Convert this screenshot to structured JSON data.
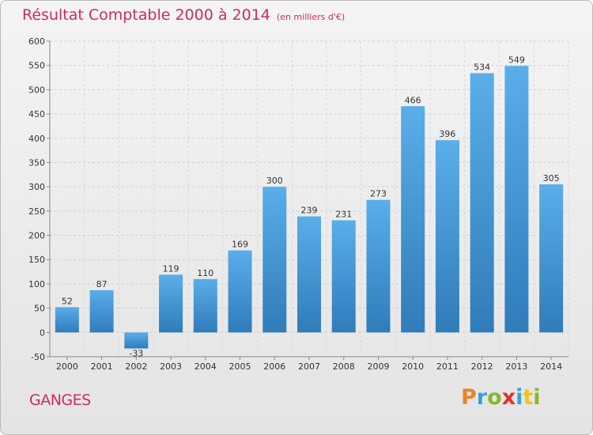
{
  "chart_data": {
    "type": "bar",
    "title": "Résultat Comptable 2000 à 2014",
    "subtitle": "(en milliers d'€)",
    "categories": [
      "2000",
      "2001",
      "2002",
      "2003",
      "2004",
      "2005",
      "2006",
      "2007",
      "2008",
      "2009",
      "2010",
      "2011",
      "2012",
      "2013",
      "2014"
    ],
    "values": [
      52,
      87,
      -33,
      119,
      110,
      169,
      300,
      239,
      231,
      273,
      466,
      396,
      534,
      549,
      305
    ],
    "y_ticks": [
      -50,
      0,
      50,
      100,
      150,
      200,
      250,
      300,
      350,
      400,
      450,
      500,
      550,
      600
    ],
    "ylim": [
      -50,
      600
    ],
    "grid": true,
    "bar_color_top": "#5aaeea",
    "bar_color_bottom": "#2f7cb9",
    "xlabel": "",
    "ylabel": ""
  },
  "footer": {
    "city": "GANGES",
    "logo_letters": [
      "P",
      "r",
      "o",
      "x",
      "i",
      "t",
      "i"
    ],
    "logo_colors": [
      "#e8842a",
      "#3aa0d8",
      "#86b72f",
      "#e0312d",
      "#3aa0d8",
      "#f0c419",
      "#86b72f"
    ]
  }
}
